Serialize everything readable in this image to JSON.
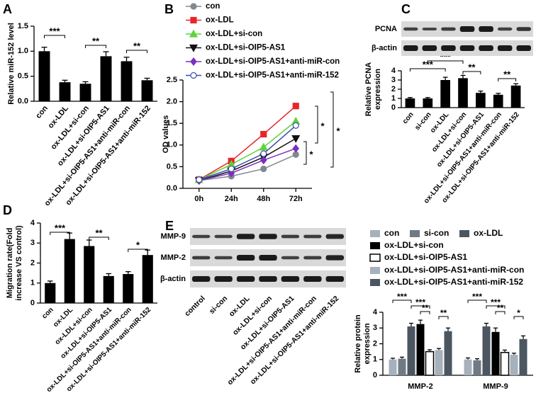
{
  "chart_data": [
    {
      "type": "bar",
      "label": "A",
      "ylabel": "Relative miR-152 level",
      "categories": [
        "con",
        "ox-LDL",
        "ox-LDL+si-con",
        "ox-LDL+si-OIP5-AS1",
        "ox-LDL+si-OIP5-AS1+anti-miR-con",
        "ox-LDL+si-OIP5-AS1+anti-miR-152"
      ],
      "values": [
        1.0,
        0.38,
        0.35,
        0.9,
        0.8,
        0.42
      ],
      "errors": [
        0.08,
        0.04,
        0.04,
        0.09,
        0.08,
        0.04
      ],
      "color": "#000000",
      "ylim": [
        0,
        1.5
      ],
      "yticks": [
        {
          "value": 0,
          "label": "0.0"
        },
        0.5,
        {
          "value": 1,
          "label": "1.0"
        },
        1.5
      ],
      "annotations": [
        "***",
        "**",
        "**"
      ]
    },
    {
      "type": "line",
      "label": "B",
      "ylabel": "OD values",
      "categories": [
        "0h",
        "24h",
        "48h",
        "72h"
      ],
      "series": [
        {
          "name": "con",
          "color": "#808890",
          "marker": "circle",
          "values": [
            0.18,
            0.28,
            0.45,
            0.78
          ]
        },
        {
          "name": "ox-LDL",
          "color": "#e8262a",
          "marker": "square",
          "values": [
            0.2,
            0.63,
            1.25,
            1.9
          ]
        },
        {
          "name": "ox-LDL+si-con",
          "color": "#5ed33a",
          "marker": "triangle",
          "values": [
            0.2,
            0.55,
            0.95,
            1.55
          ]
        },
        {
          "name": "ox-LDL+si-OIP5-AS1",
          "color": "#111111",
          "marker": "triangle-down",
          "values": [
            0.18,
            0.4,
            0.72,
            1.15
          ]
        },
        {
          "name": "ox-LDL+si-OIP5-AS1+anti-miR-con",
          "color": "#7a2fc0",
          "marker": "diamond",
          "values": [
            0.18,
            0.35,
            0.65,
            0.92
          ]
        },
        {
          "name": "ox-LDL+si-OIP5-AS1+anti-miR-152",
          "color": "#3a4fa8",
          "marker": "open-circle",
          "values": [
            0.2,
            0.45,
            0.8,
            1.45
          ]
        }
      ],
      "ylim": [
        0,
        2.5
      ],
      "yticks": [
        {
          "value": 0,
          "label": "0.0"
        },
        0.5,
        {
          "value": 1,
          "label": "1.0"
        },
        1.5,
        {
          "value": 2,
          "label": "2.0"
        },
        2.5
      ],
      "annotations": [
        "*",
        "*",
        "*"
      ]
    },
    {
      "type": "bar",
      "label": "C",
      "blot_labels": [
        "PCNA",
        "β-actin"
      ],
      "ylabel": [
        "Relative PCNA",
        "expression"
      ],
      "categories": [
        "con",
        "si-con",
        "ox-LDL",
        "ox-LDL+si-con",
        "ox-LDL+si-OIP5-AS1",
        "ox-LDL+si-OIP5-AS1+anti-miR-con",
        "ox-LDL+si-OIP5-AS1+anti-miR-152"
      ],
      "values": [
        1.0,
        1.0,
        3.0,
        3.2,
        1.6,
        1.4,
        2.4
      ],
      "errors": [
        0.1,
        0.1,
        0.3,
        0.3,
        0.2,
        0.15,
        0.2
      ],
      "color": "#000000",
      "ylim": [
        0,
        4
      ],
      "yticks": [
        0,
        1,
        2,
        3,
        4
      ],
      "annotations": [
        "***",
        "***",
        "**",
        "**"
      ]
    },
    {
      "type": "bar",
      "label": "D",
      "ylabel": [
        "Migration rate(Fold",
        "increase VS control)"
      ],
      "categories": [
        "con",
        "ox-LDL",
        "ox-LDL+si-con",
        "ox-LDL+si-OIP5-AS1",
        "ox-LDL+si-OIP5-AS1+anti-miR-con",
        "ox-LDL+si-OIP5-AS1+anti-miR-152"
      ],
      "values": [
        1.0,
        3.2,
        2.85,
        1.35,
        1.45,
        2.4
      ],
      "errors": [
        0.1,
        0.3,
        0.3,
        0.12,
        0.12,
        0.25
      ],
      "color": "#000000",
      "ylim": [
        0,
        4
      ],
      "yticks": [
        0,
        1,
        2,
        3,
        4
      ],
      "annotations": [
        "***",
        "**",
        "*"
      ]
    },
    {
      "type": "grouped-bar",
      "label": "E",
      "blot_labels": [
        "MMP-9",
        "MMP-2",
        "β-actin"
      ],
      "lane_labels": [
        "control",
        "si-con",
        "ox-LDL",
        "ox-LDL+si-con",
        "ox-LDL+si-OIP5-AS1",
        "ox-LDL+si-OIP5-AS1+anti-miR-con",
        "ox-LDL+si-OIP5-AS1+anti-miR-152"
      ],
      "ylabel": [
        "Relative protein",
        "expression"
      ],
      "categories": [
        "MMP-2",
        "MMP-9"
      ],
      "series": [
        {
          "name": "con",
          "color": "#a6b1bb",
          "values": [
            1.0,
            1.0
          ],
          "errors": [
            0.08,
            0.1
          ]
        },
        {
          "name": "si-con",
          "color": "#6f7a84",
          "values": [
            1.05,
            0.95
          ],
          "errors": [
            0.1,
            0.1
          ]
        },
        {
          "name": "ox-LDL",
          "color": "#4b5661",
          "values": [
            3.1,
            3.1
          ],
          "errors": [
            0.2,
            0.2
          ]
        },
        {
          "name": "ox-LDL+si-con",
          "color": "#000000",
          "values": [
            3.25,
            2.75
          ],
          "errors": [
            0.25,
            0.25
          ]
        },
        {
          "name": "ox-LDL+si-OIP5-AS1",
          "color": "#ffffff",
          "values": [
            1.5,
            1.45
          ],
          "errors": [
            0.12,
            0.15
          ]
        },
        {
          "name": "ox-LDL+si-OIP5-AS1+anti-miR-con",
          "color": "#a6b1bb",
          "values": [
            1.6,
            1.3
          ],
          "errors": [
            0.1,
            0.1
          ]
        },
        {
          "name": "ox-LDL+si-OIP5-AS1+anti-miR-152",
          "color": "#4b5661",
          "values": [
            2.8,
            2.3
          ],
          "errors": [
            0.2,
            0.2
          ]
        }
      ],
      "ylim": [
        0,
        4
      ],
      "yticks": [
        0,
        1,
        2,
        3,
        4
      ],
      "annotations": [
        "***",
        "***",
        "**",
        "**",
        "***",
        "***",
        "**",
        "*"
      ]
    }
  ]
}
